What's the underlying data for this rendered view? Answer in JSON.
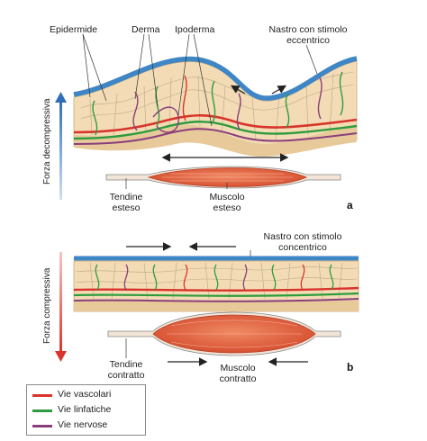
{
  "labels": {
    "epidermide": "Epidermide",
    "derma": "Derma",
    "ipoderma": "Ipoderma",
    "nastro_eccentrico_1": "Nastro con stimolo",
    "nastro_eccentrico_2": "eccentrico",
    "forza_decompressiva": "Forza decompressiva",
    "tendine_esteso_1": "Tendine",
    "tendine_esteso_2": "esteso",
    "muscolo_esteso_1": "Muscolo",
    "muscolo_esteso_2": "esteso",
    "panel_a": "a",
    "nastro_concentrico_1": "Nastro con stimolo",
    "nastro_concentrico_2": "concentrico",
    "forza_compressiva": "Forza compressiva",
    "tendine_contratto_1": "Tendine",
    "tendine_contratto_2": "contratto",
    "muscolo_contratto_1": "Muscolo",
    "muscolo_contratto_2": "contratto",
    "panel_b": "b"
  },
  "legend": {
    "items": [
      {
        "label": "Vie vascolari",
        "color": "#d9342b"
      },
      {
        "label": "Vie linfatiche",
        "color": "#2e9c3e"
      },
      {
        "label": "Vie nervose",
        "color": "#8a3f7c"
      }
    ]
  },
  "colors": {
    "tape": "#3f86c6",
    "skin": "#f3dcb5",
    "muscle": "#e0603f",
    "up_arrow": "#2f6fb8",
    "down_arrow": "#d9342b"
  }
}
